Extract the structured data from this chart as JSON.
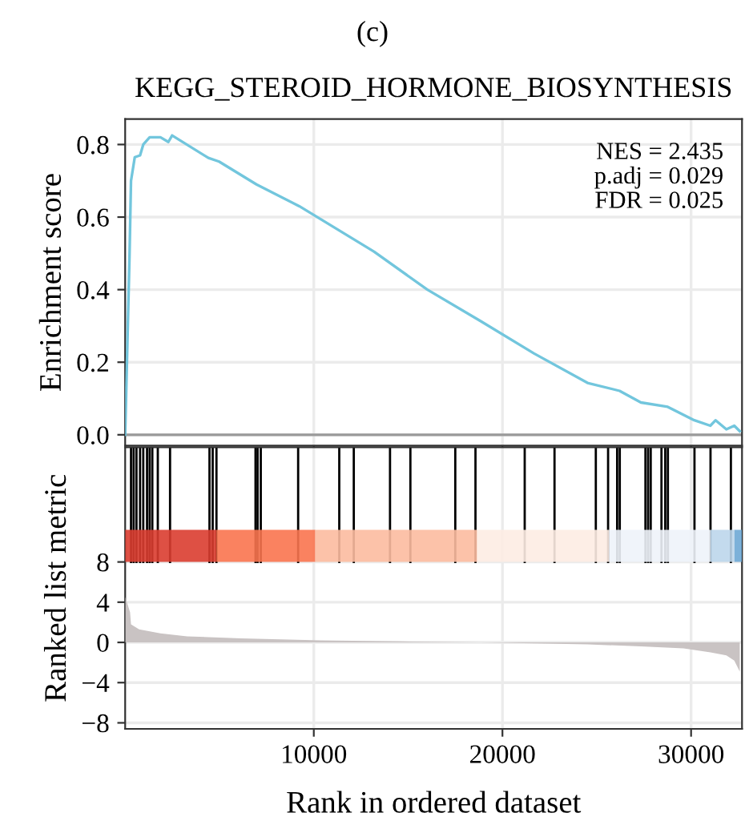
{
  "chart_data": [
    {
      "type": "line",
      "title": "KEGG_STEROID_HORMONE_BIOSYNTHESIS",
      "ylabel": "Enrichment score",
      "annotations": [
        "(c)",
        "NES = 2.435",
        "p.adj = 0.029",
        "FDR = 0.025"
      ],
      "xlim": [
        0,
        32700
      ],
      "ylim": [
        -0.03,
        0.87
      ],
      "yticks": [
        {
          "value": 0,
          "label": "0.0"
        },
        0.2,
        0.4,
        0.6,
        0.8
      ],
      "xticks": [
        10000,
        20000,
        30000
      ],
      "tick_labels": "y",
      "grid": true,
      "line_style": "solid",
      "marker": "none",
      "series": [
        {
          "color": "#72c6dd",
          "x": [
            1,
            230,
            310,
            510,
            790,
            960,
            1300,
            1870,
            2290,
            2490,
            4410,
            4980,
            6960,
            9230,
            13190,
            16020,
            18850,
            21680,
            24510,
            26210,
            27340,
            28760,
            30170,
            31020,
            31300,
            31870,
            32290,
            32580
          ],
          "values": [
            0.0,
            0.49,
            0.7,
            0.765,
            0.77,
            0.8,
            0.82,
            0.82,
            0.807,
            0.825,
            0.763,
            0.753,
            0.69,
            0.63,
            0.505,
            0.4,
            0.313,
            0.224,
            0.143,
            0.121,
            0.089,
            0.077,
            0.04,
            0.025,
            0.04,
            0.015,
            0.025,
            0.01
          ]
        }
      ],
      "ref_lines": [
        {
          "axis": "y",
          "value": 0,
          "color": "#9a9a9a",
          "line_style": "solid"
        }
      ]
    },
    {
      "type": "area",
      "xlabel": "Rank in ordered dataset",
      "ylabel": "Ranked list metric",
      "xlim": [
        0,
        32700
      ],
      "ylim": [
        -8.6,
        19.4
      ],
      "xticks": [
        10000,
        20000,
        30000
      ],
      "yticks": [
        8,
        4,
        0,
        {
          "value": -4,
          "label": "−4"
        },
        {
          "value": -8,
          "label": "−8"
        }
      ],
      "grid": true,
      "series": [
        {
          "color": "#c9c3c3",
          "x": [
            10,
            260,
            310,
            740,
            1870,
            3280,
            6120,
            10360,
            14600,
            18850,
            21680,
            24510,
            27340,
            29600,
            31030,
            31870,
            32290,
            32580
          ],
          "values": [
            4.5,
            3.0,
            1.8,
            1.3,
            0.9,
            0.6,
            0.4,
            0.2,
            0.1,
            0.0,
            -0.1,
            -0.2,
            -0.4,
            -0.6,
            -1.0,
            -1.3,
            -1.8,
            -2.9
          ]
        }
      ],
      "ref_lines": [
        {
          "axis": "x",
          "value": 310,
          "color": "#000000"
        },
        {
          "axis": "x",
          "value": 450,
          "color": "#000000"
        },
        {
          "axis": "x",
          "value": 600,
          "color": "#000000"
        },
        {
          "axis": "x",
          "value": 790,
          "color": "#000000"
        },
        {
          "axis": "x",
          "value": 960,
          "color": "#000000"
        },
        {
          "axis": "x",
          "value": 1160,
          "color": "#000000"
        },
        {
          "axis": "x",
          "value": 1300,
          "color": "#000000"
        },
        {
          "axis": "x",
          "value": 1440,
          "color": "#000000"
        },
        {
          "axis": "x",
          "value": 1730,
          "color": "#000000"
        },
        {
          "axis": "x",
          "value": 2380,
          "color": "#000000"
        },
        {
          "axis": "x",
          "value": 4470,
          "color": "#000000"
        },
        {
          "axis": "x",
          "value": 4640,
          "color": "#000000"
        },
        {
          "axis": "x",
          "value": 4840,
          "color": "#000000"
        },
        {
          "axis": "x",
          "value": 6910,
          "color": "#000000"
        },
        {
          "axis": "x",
          "value": 7020,
          "color": "#000000"
        },
        {
          "axis": "x",
          "value": 7190,
          "color": "#000000"
        },
        {
          "axis": "x",
          "value": 9170,
          "color": "#000000"
        },
        {
          "axis": "x",
          "value": 11350,
          "color": "#000000"
        },
        {
          "axis": "x",
          "value": 12120,
          "color": "#000000"
        },
        {
          "axis": "x",
          "value": 14040,
          "color": "#000000"
        },
        {
          "axis": "x",
          "value": 15120,
          "color": "#000000"
        },
        {
          "axis": "x",
          "value": 17500,
          "color": "#000000"
        },
        {
          "axis": "x",
          "value": 18570,
          "color": "#000000"
        },
        {
          "axis": "x",
          "value": 21180,
          "color": "#000000"
        },
        {
          "axis": "x",
          "value": 22760,
          "color": "#000000"
        },
        {
          "axis": "x",
          "value": 24950,
          "color": "#000000"
        },
        {
          "axis": "x",
          "value": 25600,
          "color": "#000000"
        },
        {
          "axis": "x",
          "value": 26080,
          "color": "#000000"
        },
        {
          "axis": "x",
          "value": 26220,
          "color": "#000000"
        },
        {
          "axis": "x",
          "value": 27580,
          "color": "#000000"
        },
        {
          "axis": "x",
          "value": 27720,
          "color": "#000000"
        },
        {
          "axis": "x",
          "value": 27860,
          "color": "#000000"
        },
        {
          "axis": "x",
          "value": 28430,
          "color": "#000000"
        },
        {
          "axis": "x",
          "value": 28630,
          "color": "#000000"
        },
        {
          "axis": "x",
          "value": 28770,
          "color": "#000000"
        },
        {
          "axis": "x",
          "value": 30180,
          "color": "#000000"
        },
        {
          "axis": "x",
          "value": 31030,
          "color": "#000000"
        },
        {
          "axis": "x",
          "value": 32110,
          "color": "#000000"
        }
      ],
      "bands": [
        {
          "axis": "x",
          "from": 0,
          "to": 4840,
          "color": "#da3d30"
        },
        {
          "axis": "x",
          "from": 4840,
          "to": 10080,
          "color": "#f9744f"
        },
        {
          "axis": "x",
          "from": 10080,
          "to": 18660,
          "color": "#fcbba0"
        },
        {
          "axis": "x",
          "from": 18660,
          "to": 25650,
          "color": "#fdece3"
        },
        {
          "axis": "x",
          "from": 25650,
          "to": 31030,
          "color": "#eef3fa"
        },
        {
          "axis": "x",
          "from": 31030,
          "to": 32300,
          "color": "#bdd6eb"
        },
        {
          "axis": "x",
          "from": 32300,
          "to": 32700,
          "color": "#6ea8d5"
        }
      ]
    }
  ]
}
